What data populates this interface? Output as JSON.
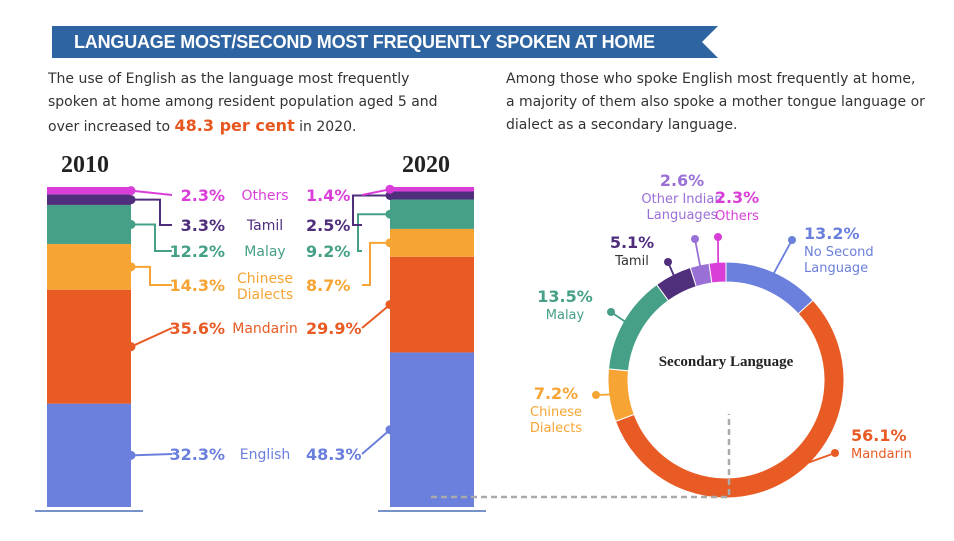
{
  "banner": {
    "title": "LANGUAGE MOST/SECOND MOST FREQUENTLY SPOKEN AT HOME",
    "color": "#2f64a2"
  },
  "intro_left": {
    "before": "The use of English as the language most frequently spoken at home among resident population aged 5 and over increased to ",
    "highlight": "48.3 per cent",
    "after": " in 2020."
  },
  "intro_right": {
    "text": "Among those who spoke English most frequently at home, a majority of them also spoke a mother tongue language or dialect as a secondary language."
  },
  "chart_data": [
    {
      "type": "stacked_bar",
      "categories": [
        "2010",
        "2020"
      ],
      "series": [
        {
          "name": "English",
          "values": [
            32.3,
            48.3
          ],
          "labels": [
            "32.3%",
            "48.3%"
          ],
          "color": "#6b7fdc"
        },
        {
          "name": "Mandarin",
          "values": [
            35.6,
            29.9
          ],
          "labels": [
            "35.6%",
            "29.9%"
          ],
          "color": "#e85b25"
        },
        {
          "name": "Chinese Dialects",
          "values": [
            14.3,
            8.7
          ],
          "labels": [
            "14.3%",
            "8.7%"
          ],
          "color": "#f6a433"
        },
        {
          "name": "Malay",
          "values": [
            12.2,
            9.2
          ],
          "labels": [
            "12.2%",
            "9.2%"
          ],
          "color": "#46a088"
        },
        {
          "name": "Tamil",
          "values": [
            3.3,
            2.5
          ],
          "labels": [
            "3.3%",
            "2.5%"
          ],
          "color": "#4f2e7c"
        },
        {
          "name": "Others",
          "values": [
            2.3,
            1.4
          ],
          "labels": [
            "2.3%",
            "1.4%"
          ],
          "color": "#d93fd8"
        }
      ]
    },
    {
      "type": "pie",
      "title": "Secondary Language",
      "slices": [
        {
          "name": "No Second Language",
          "value": 13.2,
          "label": "13.2%",
          "color": "#6b7fdc"
        },
        {
          "name": "Mandarin",
          "value": 56.1,
          "label": "56.1%",
          "color": "#e85b25"
        },
        {
          "name": "Chinese Dialects",
          "value": 7.2,
          "label": "7.2%",
          "color": "#f6a433"
        },
        {
          "name": "Malay",
          "value": 13.5,
          "label": "13.5%",
          "color": "#46a088"
        },
        {
          "name": "Tamil",
          "value": 5.1,
          "label": "5.1%",
          "color": "#4f2e7c"
        },
        {
          "name": "Other Indian Languages",
          "value": 2.6,
          "label": "2.6%",
          "color": "#9a6fd6"
        },
        {
          "name": "Others",
          "value": 2.3,
          "label": "2.3%",
          "color": "#d93fd8"
        }
      ]
    }
  ]
}
